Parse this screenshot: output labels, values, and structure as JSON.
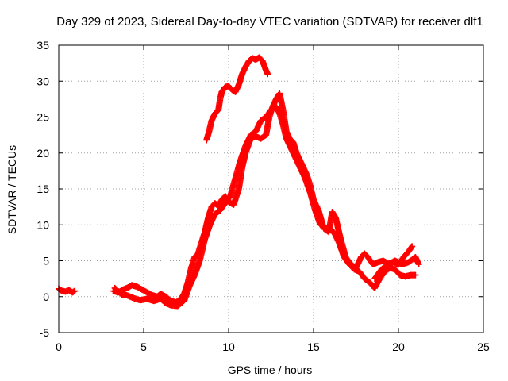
{
  "chart_data": {
    "type": "scatter",
    "title": "Day 329 of 2023, Sidereal Day-to-day VTEC variation (SDTVAR) for receiver dlf1",
    "xlabel": "GPS time / hours",
    "ylabel": "SDTVAR / TECUs",
    "xlim": [
      0,
      25
    ],
    "ylim": [
      -5,
      35
    ],
    "xticks": [
      0,
      5,
      10,
      15,
      20,
      25
    ],
    "yticks": [
      -5,
      0,
      5,
      10,
      15,
      20,
      25,
      30,
      35
    ],
    "grid": true,
    "marker": "+",
    "color": "#ff0000",
    "series": [
      {
        "name": "early-segment",
        "points": [
          [
            0.0,
            1.1
          ],
          [
            0.2,
            0.8
          ],
          [
            0.4,
            0.7
          ],
          [
            0.6,
            0.9
          ],
          [
            0.8,
            0.6
          ],
          [
            0.95,
            0.8
          ]
        ]
      },
      {
        "name": "main-track-a",
        "points": [
          [
            3.2,
            0.8
          ],
          [
            3.5,
            0.6
          ],
          [
            3.8,
            1.0
          ],
          [
            4.1,
            1.3
          ],
          [
            4.3,
            1.6
          ],
          [
            4.6,
            1.4
          ],
          [
            4.9,
            1.0
          ],
          [
            5.2,
            0.6
          ],
          [
            5.5,
            0.2
          ],
          [
            5.8,
            0.0
          ],
          [
            6.0,
            0.4
          ],
          [
            6.3,
            0.0
          ],
          [
            6.6,
            -0.6
          ],
          [
            6.9,
            -0.8
          ],
          [
            7.2,
            -0.3
          ],
          [
            7.4,
            0.5
          ],
          [
            7.6,
            2.0
          ],
          [
            7.8,
            4.0
          ],
          [
            8.0,
            5.5
          ],
          [
            8.2,
            6.0
          ],
          [
            8.4,
            7.5
          ],
          [
            8.6,
            9.0
          ],
          [
            8.8,
            11.0
          ],
          [
            9.0,
            12.5
          ],
          [
            9.2,
            13.0
          ],
          [
            9.4,
            12.6
          ],
          [
            9.6,
            13.5
          ],
          [
            9.8,
            14.0
          ],
          [
            10.0,
            13.2
          ],
          [
            10.3,
            12.8
          ],
          [
            10.6,
            15.0
          ],
          [
            10.8,
            18.0
          ],
          [
            11.0,
            20.0
          ],
          [
            11.3,
            22.0
          ],
          [
            11.6,
            22.3
          ],
          [
            11.9,
            22.0
          ],
          [
            12.2,
            22.5
          ],
          [
            12.4,
            25.0
          ],
          [
            12.6,
            26.5
          ],
          [
            12.8,
            27.5
          ],
          [
            13.0,
            28.3
          ],
          [
            13.2,
            26.0
          ],
          [
            13.4,
            23.0
          ],
          [
            13.6,
            22.0
          ],
          [
            13.8,
            21.5
          ],
          [
            14.0,
            20.0
          ],
          [
            14.3,
            18.5
          ],
          [
            14.6,
            17.0
          ],
          [
            14.8,
            15.5
          ],
          [
            15.0,
            13.5
          ],
          [
            15.3,
            12.0
          ],
          [
            15.6,
            9.5
          ],
          [
            15.9,
            9.0
          ],
          [
            16.1,
            11.8
          ],
          [
            16.3,
            11.0
          ],
          [
            16.6,
            8.0
          ],
          [
            16.9,
            5.5
          ],
          [
            17.2,
            4.5
          ],
          [
            17.5,
            4.0
          ],
          [
            17.8,
            5.5
          ],
          [
            18.0,
            6.0
          ],
          [
            18.2,
            5.5
          ],
          [
            18.5,
            4.5
          ],
          [
            18.8,
            4.8
          ],
          [
            19.1,
            5.0
          ],
          [
            19.4,
            4.6
          ],
          [
            19.7,
            4.8
          ],
          [
            20.0,
            4.5
          ],
          [
            20.3,
            5.5
          ],
          [
            20.6,
            6.3
          ],
          [
            20.8,
            7.0
          ]
        ]
      },
      {
        "name": "main-track-b",
        "points": [
          [
            3.3,
            1.2
          ],
          [
            3.7,
            0.3
          ],
          [
            4.0,
            0.2
          ],
          [
            4.4,
            -0.2
          ],
          [
            4.8,
            -0.5
          ],
          [
            5.2,
            -0.3
          ],
          [
            5.6,
            -0.6
          ],
          [
            6.0,
            -0.3
          ],
          [
            6.3,
            -0.9
          ],
          [
            6.6,
            -1.2
          ],
          [
            7.0,
            -1.3
          ],
          [
            7.4,
            -0.5
          ],
          [
            7.7,
            1.5
          ],
          [
            8.0,
            3.0
          ],
          [
            8.3,
            5.0
          ],
          [
            8.6,
            8.0
          ],
          [
            8.9,
            10.0
          ],
          [
            9.2,
            11.5
          ],
          [
            9.5,
            12.0
          ],
          [
            9.8,
            13.0
          ],
          [
            10.1,
            14.0
          ],
          [
            10.4,
            16.5
          ],
          [
            10.7,
            19.0
          ],
          [
            11.0,
            21.0
          ],
          [
            11.3,
            22.5
          ],
          [
            11.6,
            23.0
          ],
          [
            11.9,
            24.5
          ],
          [
            12.2,
            25.0
          ],
          [
            12.5,
            26.0
          ],
          [
            12.8,
            26.5
          ],
          [
            13.0,
            25.5
          ],
          [
            13.2,
            24.0
          ],
          [
            13.4,
            22.0
          ],
          [
            13.6,
            21.0
          ],
          [
            13.9,
            19.5
          ],
          [
            14.2,
            18.0
          ],
          [
            14.5,
            16.5
          ],
          [
            14.8,
            14.5
          ],
          [
            15.1,
            12.0
          ],
          [
            15.4,
            10.0
          ],
          [
            15.8,
            9.5
          ],
          [
            16.2,
            9.0
          ],
          [
            16.5,
            7.5
          ],
          [
            16.8,
            5.5
          ],
          [
            17.1,
            4.5
          ],
          [
            17.4,
            3.8
          ],
          [
            17.7,
            3.5
          ],
          [
            18.0,
            2.5
          ],
          [
            18.3,
            2.0
          ],
          [
            18.6,
            1.2
          ],
          [
            18.9,
            2.5
          ],
          [
            19.2,
            3.5
          ],
          [
            19.5,
            4.0
          ],
          [
            19.8,
            3.8
          ],
          [
            20.1,
            3.0
          ],
          [
            20.4,
            2.8
          ],
          [
            20.7,
            3.0
          ],
          [
            21.0,
            3.0
          ]
        ]
      },
      {
        "name": "upper-segment",
        "points": [
          [
            8.7,
            21.8
          ],
          [
            8.85,
            23.0
          ],
          [
            9.0,
            24.5
          ],
          [
            9.2,
            25.5
          ],
          [
            9.4,
            26.0
          ],
          [
            9.5,
            27.5
          ],
          [
            9.6,
            28.5
          ],
          [
            9.8,
            29.2
          ],
          [
            10.0,
            29.3
          ],
          [
            10.2,
            28.8
          ],
          [
            10.4,
            28.5
          ],
          [
            10.6,
            29.5
          ],
          [
            10.8,
            31.0
          ],
          [
            11.0,
            32.0
          ],
          [
            11.2,
            32.8
          ],
          [
            11.4,
            33.2
          ],
          [
            11.6,
            33.0
          ],
          [
            11.8,
            33.3
          ],
          [
            12.0,
            32.8
          ],
          [
            12.2,
            31.5
          ],
          [
            12.3,
            31.0
          ]
        ]
      },
      {
        "name": "late-segment",
        "points": [
          [
            18.6,
            2.5
          ],
          [
            19.0,
            3.8
          ],
          [
            19.4,
            4.5
          ],
          [
            19.8,
            5.0
          ],
          [
            20.2,
            4.5
          ],
          [
            20.6,
            4.8
          ],
          [
            21.0,
            5.5
          ],
          [
            21.2,
            4.5
          ]
        ]
      }
    ]
  }
}
